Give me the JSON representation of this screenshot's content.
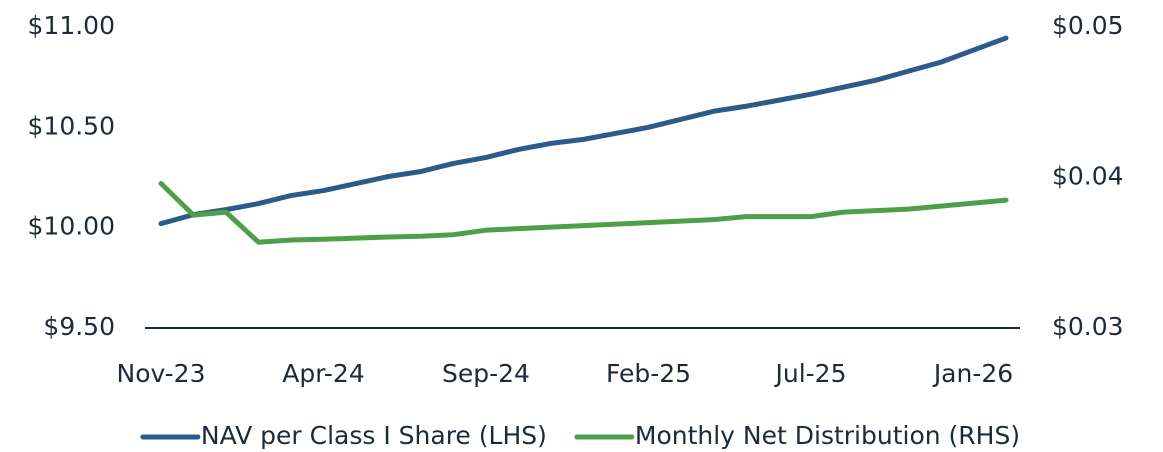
{
  "chart_data": {
    "type": "line",
    "categories": [
      "Nov-23",
      null,
      null,
      null,
      null,
      "Apr-24",
      null,
      null,
      null,
      null,
      "Sep-24",
      null,
      null,
      null,
      null,
      "Feb-25",
      null,
      null,
      null,
      null,
      "Jul-25",
      null,
      null,
      null,
      null,
      "Jan-26",
      null
    ],
    "series": [
      {
        "name": "NAV per Class I Share (LHS)",
        "color": "#2b5b89",
        "axis": "y",
        "values": [
          10.02,
          10.065,
          10.09,
          10.12,
          10.16,
          10.185,
          10.22,
          10.255,
          10.28,
          10.32,
          10.35,
          10.39,
          10.42,
          10.44,
          10.47,
          10.5,
          10.54,
          10.58,
          10.605,
          10.635,
          10.665,
          10.7,
          10.735,
          10.78,
          10.825,
          10.885,
          10.945
        ]
      },
      {
        "name": "Monthly Net Distribution (RHS)",
        "color": "#4e9f48",
        "axis": "y2",
        "values": [
          0.0396,
          0.0375,
          0.0377,
          0.0357,
          0.03585,
          0.0359,
          0.03597,
          0.03605,
          0.0361,
          0.0362,
          0.0365,
          0.0366,
          0.0367,
          0.0368,
          0.0369,
          0.037,
          0.0371,
          0.0372,
          0.0374,
          0.0374,
          0.0374,
          0.0377,
          0.0378,
          0.0379,
          0.0381,
          0.0383,
          0.0385
        ]
      }
    ],
    "ylim": [
      9.5,
      11.0
    ],
    "yticks": [
      {
        "value": 9.5,
        "label": "$9.50"
      },
      {
        "value": 10.0,
        "label": "$10.00"
      },
      {
        "value": 10.5,
        "label": "$10.50"
      },
      {
        "value": 11.0,
        "label": "$11.00"
      }
    ],
    "y2lim": [
      0.03,
      0.05
    ],
    "y2ticks": [
      {
        "value": 0.03,
        "label": "$0.03"
      },
      {
        "value": 0.04,
        "label": "$0.04"
      },
      {
        "value": 0.05,
        "label": "$0.05"
      }
    ],
    "grid": false,
    "legend": "bottom"
  }
}
